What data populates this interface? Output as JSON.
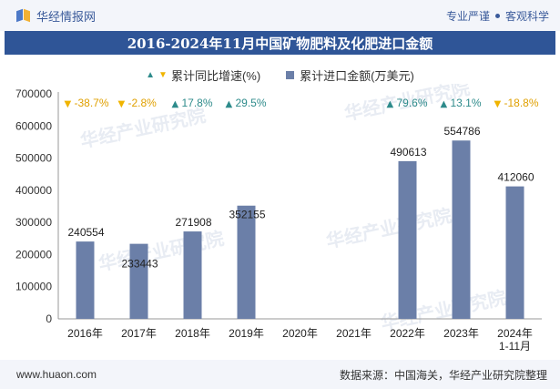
{
  "header": {
    "brand": "华经情报网",
    "tagline_1": "专业严谨",
    "tagline_2": "客观科学"
  },
  "title": "2016-2024年11月中国矿物肥料及化肥进口金额",
  "legend": {
    "growth_label": "累计同比增速(%)",
    "amount_label": "累计进口金额(万美元)"
  },
  "footer": {
    "website": "www.huaon.com",
    "source": "数据来源：中国海关，华经产业研究院整理"
  },
  "colors": {
    "bar": "#6b7fa8",
    "up": "#2e8b8b",
    "down": "#f0b400",
    "title_bg": "#2f5597"
  },
  "watermark_text": "华经产业研究院",
  "chart_data": {
    "type": "bar",
    "title": "2016-2024年11月中国矿物肥料及化肥进口金额",
    "categories": [
      "2016年",
      "2017年",
      "2018年",
      "2019年",
      "2020年",
      "2021年",
      "2022年",
      "2023年",
      "2024年\n1-11月"
    ],
    "series": [
      {
        "name": "累计进口金额(万美元)",
        "values": [
          240554,
          233443,
          271908,
          352155,
          null,
          null,
          490613,
          554786,
          412060
        ],
        "labels": [
          "240554",
          "233443",
          "271908",
          "352155",
          "",
          "",
          "490613",
          "554786",
          "412060"
        ]
      },
      {
        "name": "累计同比增速(%)",
        "values": [
          -38.7,
          -2.8,
          17.8,
          29.5,
          null,
          null,
          79.6,
          13.1,
          -18.8
        ],
        "labels": [
          "-38.7%",
          "-2.8%",
          "17.8%",
          "29.5%",
          "",
          "",
          "79.6%",
          "13.1%",
          "-18.8%"
        ]
      }
    ],
    "y_ticks": [
      "0",
      "100000",
      "200000",
      "300000",
      "400000",
      "500000",
      "600000",
      "700000"
    ],
    "ylim": [
      0,
      700000
    ],
    "xlabel": "",
    "ylabel": ""
  }
}
